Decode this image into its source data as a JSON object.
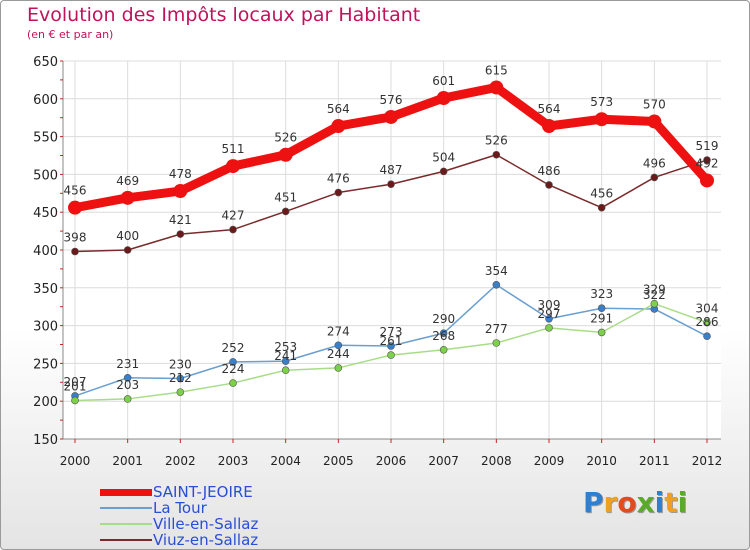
{
  "header": {
    "title": "Evolution des Impôts locaux par Habitant",
    "subtitle": "(en € et par an)"
  },
  "logo": {
    "text": "Proxiti",
    "letter_colors": [
      "#2e7fd0",
      "#f0a020",
      "#e34a1c",
      "#5aaa2a",
      "#2e7fd0",
      "#f0a020",
      "#5aaa2a"
    ]
  },
  "chart_data": {
    "type": "line",
    "title": "Evolution des Impôts locaux par Habitant",
    "subtitle": "(en € et par an)",
    "xlabel": "",
    "ylabel": "",
    "x": [
      "2000",
      "2001",
      "2002",
      "2003",
      "2004",
      "2005",
      "2006",
      "2007",
      "2008",
      "2009",
      "2010",
      "2011",
      "2012"
    ],
    "ylim": [
      150,
      650
    ],
    "yticks": [
      150,
      200,
      250,
      300,
      350,
      400,
      450,
      500,
      550,
      600,
      650
    ],
    "grid": true,
    "legend_position": "bottom-left",
    "series": [
      {
        "name": "SAINT-JEOIRE",
        "color": "#ee1111",
        "marker_color": "#ee1111",
        "values": [
          456,
          469,
          478,
          511,
          526,
          564,
          576,
          601,
          615,
          564,
          573,
          570,
          492
        ],
        "labels_shown": true
      },
      {
        "name": "La Tour",
        "color": "#6a9fd0",
        "marker_color": "#3a7fc8",
        "values": [
          207,
          231,
          230,
          252,
          253,
          274,
          273,
          290,
          354,
          309,
          323,
          322,
          286
        ],
        "labels_shown": true
      },
      {
        "name": "Ville-en-Sallaz",
        "color": "#a8dd88",
        "marker_color": "#7cd04a",
        "values": [
          201,
          203,
          212,
          224,
          241,
          244,
          261,
          268,
          277,
          297,
          291,
          329,
          304
        ],
        "labels_shown": true
      },
      {
        "name": "Viuz-en-Sallaz",
        "color": "#7a2a2a",
        "marker_color": "#6a1a1a",
        "values": [
          398,
          400,
          421,
          427,
          451,
          476,
          487,
          504,
          526,
          486,
          456,
          496,
          519
        ],
        "labels_shown": true
      }
    ]
  }
}
